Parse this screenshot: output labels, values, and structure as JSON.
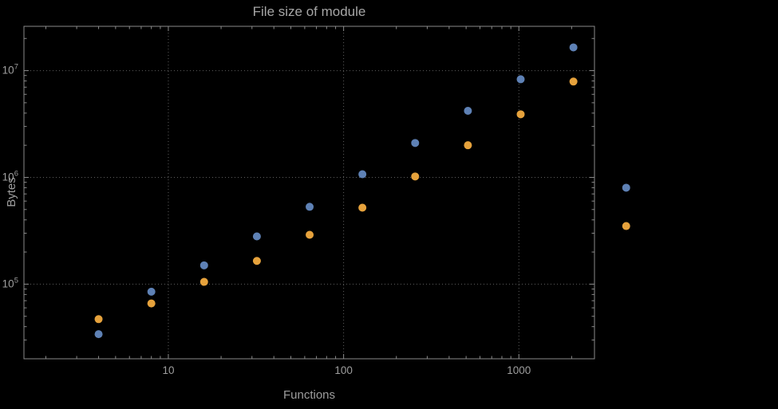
{
  "colors": {
    "background": "#000000",
    "frame": "#8a8a8a",
    "grid": "#5e5e5e",
    "text": "#9e9e9e",
    "series_blue": "#5e81b5",
    "series_orange": "#e6a23c"
  },
  "chart_data": {
    "type": "scatter",
    "title": "File size of module",
    "xlabel": "Functions",
    "ylabel": "Bytes",
    "xscale": "log",
    "yscale": "log",
    "xlim": [
      1.5,
      2700
    ],
    "ylim": [
      20000,
      26000000
    ],
    "grid": "dotted lines at decade ticks",
    "legend_position": "none",
    "x": [
      4,
      8,
      16,
      32,
      64,
      128,
      256,
      512,
      1024,
      2048,
      4096
    ],
    "series": [
      {
        "name": "series-blue",
        "color": "#5e81b5",
        "values": [
          34000,
          85000,
          150000,
          280000,
          530000,
          1070000,
          2100000,
          4200000,
          8300000,
          16500000,
          800000
        ]
      },
      {
        "name": "series-orange",
        "color": "#e6a23c",
        "values": [
          47000,
          66000,
          105000,
          165000,
          290000,
          520000,
          1020000,
          2000000,
          3900000,
          7900000,
          350000
        ]
      }
    ],
    "xticks": [
      {
        "v": 10,
        "label": "10"
      },
      {
        "v": 100,
        "label": "100"
      },
      {
        "v": 1000,
        "label": "1000"
      }
    ],
    "yticks": [
      {
        "v": 100000,
        "base": "10",
        "exp": "5"
      },
      {
        "v": 1000000,
        "base": "10",
        "exp": "6"
      },
      {
        "v": 10000000,
        "base": "10",
        "exp": "7"
      }
    ]
  }
}
